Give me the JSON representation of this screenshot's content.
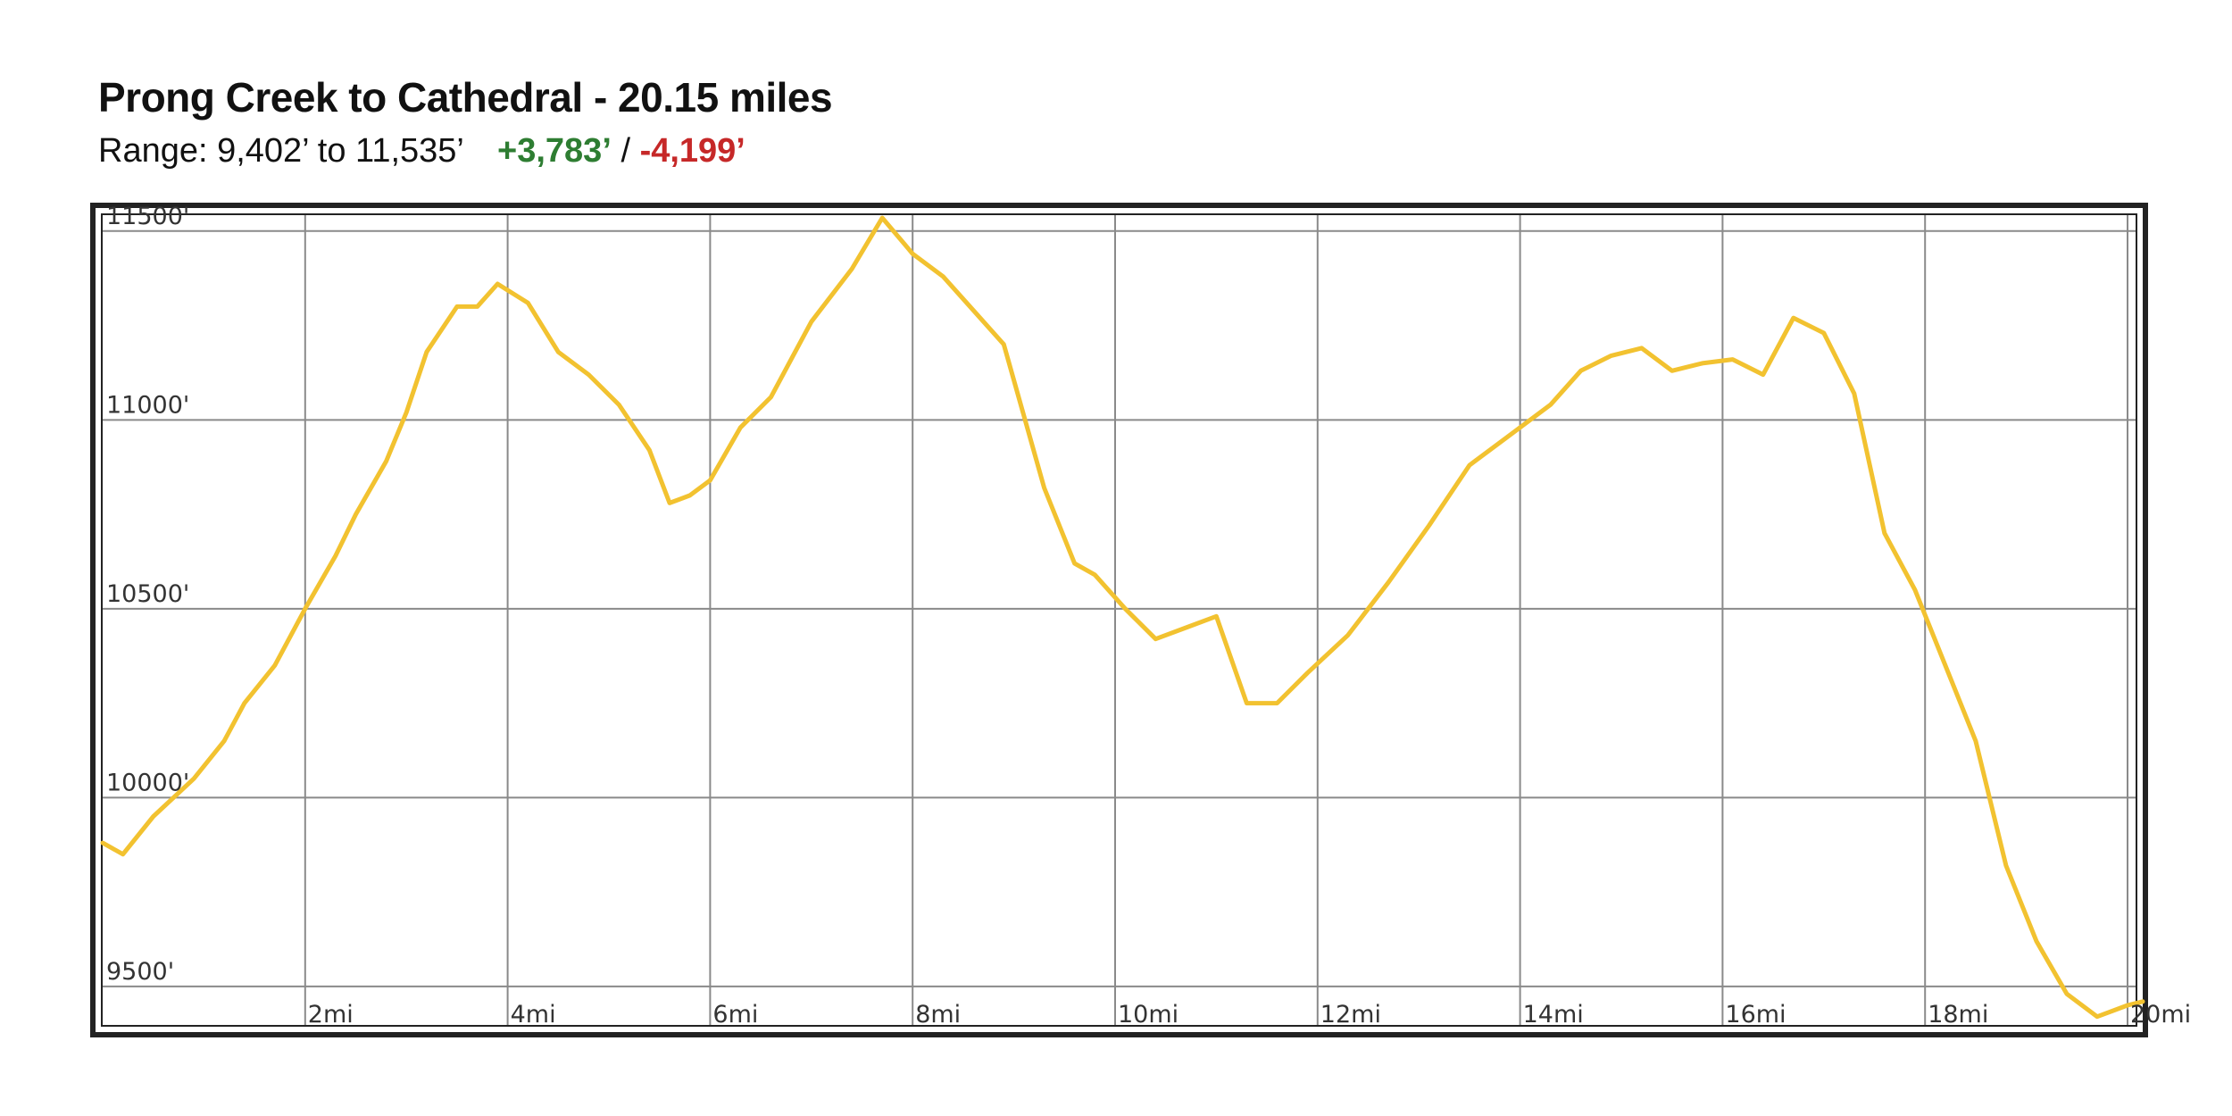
{
  "header": {
    "title": "Prong Creek to Cathedral - 20.15 miles",
    "range_text": "Range: 9,402’ to 11,535’",
    "gain": "+3,783’",
    "separator": "/",
    "loss": "-4,199’",
    "gain_color": "#2e7d32",
    "loss_color": "#c62828"
  },
  "chart_data": {
    "type": "line",
    "title": "Prong Creek to Cathedral - 20.15 miles",
    "xlabel": "",
    "ylabel": "",
    "xlim": [
      0,
      20.15
    ],
    "ylim": [
      9470,
      11530
    ],
    "grid": true,
    "line_color": "#f2c230",
    "x_ticks": [
      {
        "value": 2,
        "label": "2mi"
      },
      {
        "value": 4,
        "label": "4mi"
      },
      {
        "value": 6,
        "label": "6mi"
      },
      {
        "value": 8,
        "label": "8mi"
      },
      {
        "value": 10,
        "label": "10mi"
      },
      {
        "value": 12,
        "label": "12mi"
      },
      {
        "value": 14,
        "label": "14mi"
      },
      {
        "value": 16,
        "label": "16mi"
      },
      {
        "value": 18,
        "label": "18mi"
      },
      {
        "value": 20,
        "label": "20mi"
      }
    ],
    "y_ticks": [
      {
        "value": 9500,
        "label": "9500'"
      },
      {
        "value": 10000,
        "label": "10000'"
      },
      {
        "value": 10500,
        "label": "10500'"
      },
      {
        "value": 11000,
        "label": "11000'"
      },
      {
        "value": 11500,
        "label": "11500'"
      }
    ],
    "series": [
      {
        "x": [
          0,
          0.2,
          0.5,
          0.9,
          1.2,
          1.4,
          1.7,
          2.0,
          2.3,
          2.5,
          2.8,
          3.0,
          3.2,
          3.5,
          3.7,
          3.9,
          4.2,
          4.5,
          4.8,
          5.1,
          5.4,
          5.6,
          5.8,
          6.0,
          6.3,
          6.6,
          7.0,
          7.4,
          7.7,
          8.0,
          8.3,
          8.6,
          8.9,
          9.3,
          9.6,
          9.8,
          10.1,
          10.4,
          10.7,
          11.0,
          11.3,
          11.6,
          11.9,
          12.3,
          12.7,
          13.1,
          13.5,
          13.9,
          14.3,
          14.6,
          14.9,
          15.2,
          15.5,
          15.8,
          16.1,
          16.4,
          16.7,
          17.0,
          17.3,
          17.6,
          17.9,
          18.2,
          18.5,
          18.8,
          19.1,
          19.4,
          19.7,
          20.0,
          20.15
        ],
        "y": [
          9880,
          9850,
          9950,
          10050,
          10150,
          10250,
          10350,
          10500,
          10640,
          10750,
          10890,
          11020,
          11180,
          11300,
          11300,
          11360,
          11310,
          11180,
          11120,
          11040,
          10920,
          10780,
          10800,
          10840,
          10980,
          11060,
          11260,
          11400,
          11535,
          11440,
          11380,
          11290,
          11200,
          10820,
          10620,
          10590,
          10500,
          10420,
          10450,
          10480,
          10250,
          10250,
          10330,
          10430,
          10570,
          10720,
          10880,
          10960,
          11040,
          11130,
          11170,
          11190,
          11130,
          11150,
          11160,
          11120,
          11270,
          11230,
          11070,
          10700,
          10550,
          10350,
          10150,
          9820,
          9620,
          9480,
          9420,
          9450,
          9460
        ]
      }
    ]
  }
}
